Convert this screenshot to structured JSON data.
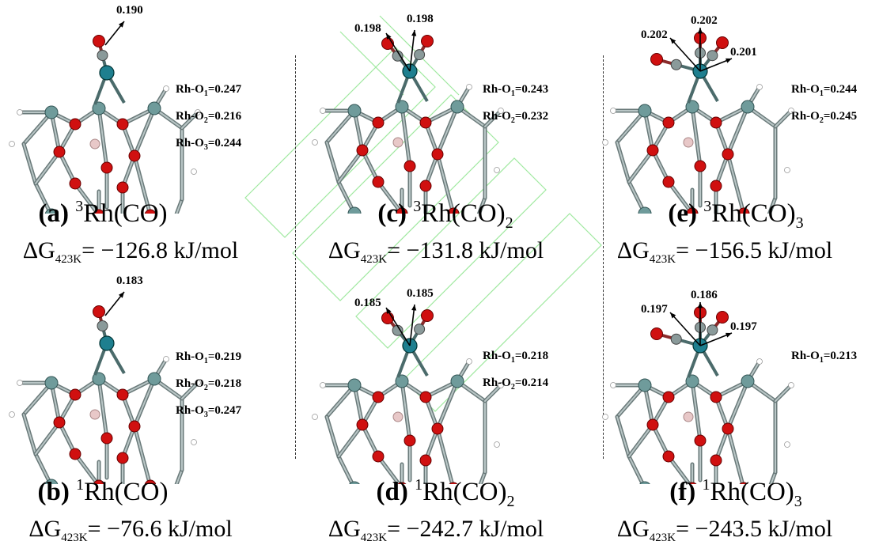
{
  "panels": [
    {
      "id": "a",
      "col": 0,
      "row": 0,
      "letter": "(a)",
      "spin": "3",
      "formula": "Rh(CO)",
      "formula_sub": "",
      "dg_value": "= −126.8 kJ/mol",
      "arrows": [
        "0.190"
      ],
      "bonds": [
        {
          "prefix": "Rh-O",
          "idx": "1",
          "value": "=0.247"
        },
        {
          "prefix": "Rh-O",
          "idx": "2",
          "value": "=0.216"
        },
        {
          "prefix": "Rh-O",
          "idx": "3",
          "value": "=0.244"
        }
      ]
    },
    {
      "id": "b",
      "col": 0,
      "row": 1,
      "letter": "(b)",
      "spin": "1",
      "formula": "Rh(CO)",
      "formula_sub": "",
      "dg_value": "= −76.6 kJ/mol",
      "arrows": [
        "0.183"
      ],
      "bonds": [
        {
          "prefix": "Rh-O",
          "idx": "1",
          "value": "=0.219"
        },
        {
          "prefix": "Rh-O",
          "idx": "2",
          "value": "=0.218"
        },
        {
          "prefix": "Rh-O",
          "idx": "3",
          "value": "=0.247"
        }
      ]
    },
    {
      "id": "c",
      "col": 1,
      "row": 0,
      "letter": "(c)",
      "spin": "3",
      "formula": "Rh(CO)",
      "formula_sub": "2",
      "dg_value": "= −131.8 kJ/mol",
      "arrows": [
        "0.198",
        "0.198"
      ],
      "bonds": [
        {
          "prefix": "Rh-O",
          "idx": "1",
          "value": "=0.243"
        },
        {
          "prefix": "Rh-O",
          "idx": "2",
          "value": "=0.232"
        }
      ]
    },
    {
      "id": "d",
      "col": 1,
      "row": 1,
      "letter": "(d)",
      "spin": "1",
      "formula": "Rh(CO)",
      "formula_sub": "2",
      "dg_value": "= −242.7 kJ/mol",
      "arrows": [
        "0.185",
        "0.185"
      ],
      "bonds": [
        {
          "prefix": "Rh-O",
          "idx": "1",
          "value": "=0.218"
        },
        {
          "prefix": "Rh-O",
          "idx": "2",
          "value": "=0.214"
        }
      ]
    },
    {
      "id": "e",
      "col": 2,
      "row": 0,
      "letter": "(e)",
      "spin": "3",
      "formula": "Rh(CO)",
      "formula_sub": "3",
      "dg_value": "= −156.5 kJ/mol",
      "arrows": [
        "0.202",
        "0.202",
        "0.201"
      ],
      "bonds": [
        {
          "prefix": "Rh-O",
          "idx": "1",
          "value": "=0.244"
        },
        {
          "prefix": "Rh-O",
          "idx": "2",
          "value": "=0.245"
        }
      ]
    },
    {
      "id": "f",
      "col": 2,
      "row": 1,
      "letter": "(f)",
      "spin": "1",
      "formula": "Rh(CO)",
      "formula_sub": "3",
      "dg_value": "= −243.5 kJ/mol",
      "arrows": [
        "0.197",
        "0.186",
        "0.197"
      ],
      "bonds": [
        {
          "prefix": "Rh-O",
          "idx": "1",
          "value": "=0.213"
        }
      ]
    }
  ],
  "dg_symbol": "ΔG",
  "dg_temp": "423K",
  "colors": {
    "rhodium": "#1e7f8f",
    "oxygen": "#d01010",
    "carbon": "#8a9a9a",
    "hydrogen": "#e8e8e8",
    "boron": "#e8c8c8",
    "bond": "#6a7a7a",
    "watermark": "#7ee07e"
  }
}
